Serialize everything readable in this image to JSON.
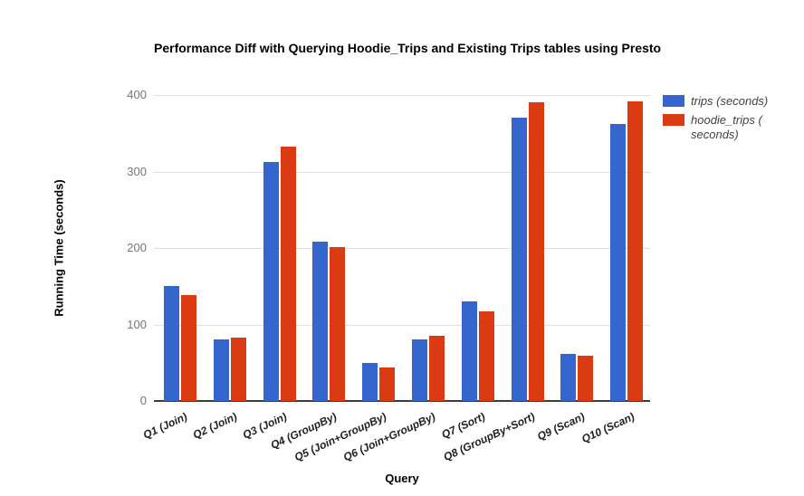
{
  "chart_data": {
    "type": "bar",
    "title": "Performance Diff with Querying Hoodie_Trips and Existing Trips tables using Presto",
    "xlabel": "Query",
    "ylabel": "Running Time (seconds)",
    "ylim": [
      0,
      400
    ],
    "y_ticks": [
      0,
      100,
      200,
      300,
      400
    ],
    "grid": true,
    "legend_position": "right",
    "categories": [
      "Q1 (Join)",
      "Q2 (Join)",
      "Q3 (Join)",
      "Q4 (GroupBy)",
      "Q5 (Join+GroupBy)",
      "Q6 (Join+GroupBy)",
      "Q7 (Sort)",
      "Q8 (GroupBy+Sort)",
      "Q9 (Scan)",
      "Q10 (Scan)"
    ],
    "series": [
      {
        "name": "trips (seconds)",
        "color": "#3566CD",
        "values": [
          150,
          80,
          313,
          208,
          50,
          81,
          130,
          370,
          61,
          362
        ]
      },
      {
        "name": "hoodie_trips ( seconds)",
        "color": "#DA3B13",
        "values": [
          138,
          83,
          332,
          201,
          44,
          85,
          117,
          390,
          59,
          392
        ]
      }
    ]
  },
  "colors": {
    "gridline": "#E0E0E0",
    "axis_line": "#3C3C3C",
    "y_tick_label": "#757575",
    "x_tick_label": "#212121",
    "legend_text": "#424242",
    "title_text": "#000000",
    "background": "#FFFFFF"
  }
}
